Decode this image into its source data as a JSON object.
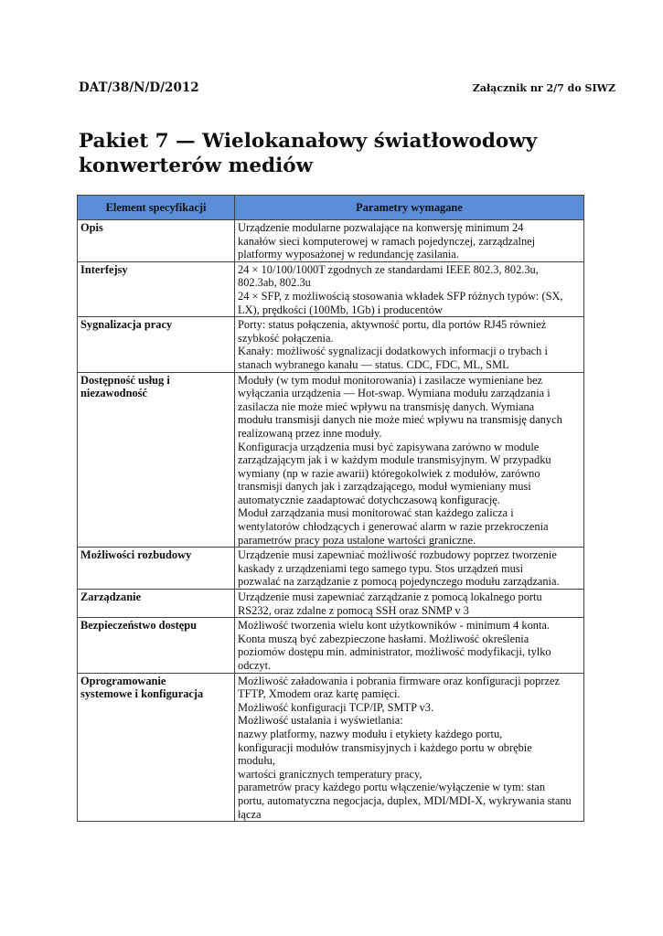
{
  "header": {
    "doc_id": "DAT/38/N/D/2012",
    "attachment": "Załącznik nr 2/7 do SIWZ"
  },
  "title_lines": [
    "Pakiet 7 — Wielokanałowy światłowodowy",
    "konwerterów mediów"
  ],
  "table": {
    "header_color": "#5a8ed8",
    "columns": [
      "Element specyfikacji",
      "Parametry wymagane"
    ],
    "rows": [
      {
        "key": [
          "Opis"
        ],
        "value": [
          "Urządzenie modularne pozwalające na konwersję minimum 24",
          "kanałów sieci komputerowej w ramach pojedynczej, zarządzalnej",
          "platformy wyposażonej w redundancję zasilania."
        ]
      },
      {
        "key": [
          "Interfejsy"
        ],
        "value": [
          "24 × 10/100/1000T zgodnych ze standardami IEEE 802.3, 802.3u,",
          "802.3ab, 802.3u",
          "24 × SFP, z możliwością stosowania wkładek SFP różnych typów: (SX,",
          "LX), prędkości (100Mb, 1Gb) i producentów"
        ]
      },
      {
        "key": [
          "Sygnalizacja pracy"
        ],
        "value": [
          "Porty: status połączenia, aktywność portu, dla portów RJ45 również",
          "szybkość połączenia.",
          "Kanały: możliwość sygnalizacji dodatkowych informacji o trybach i",
          "stanach wybranego kanału — status. CDC, FDC, ML, SML"
        ]
      },
      {
        "key": [
          "Dostępność usług i",
          "niezawodność"
        ],
        "value": [
          "Moduły (w tym moduł monitorowania) i zasilacze wymieniane bez",
          "wyłączania urządzenia — Hot-swap. Wymiana modułu zarządzania i",
          "zasilacza nie może mieć wpływu na transmisję danych. Wymiana",
          "modułu transmisji danych nie może mieć wpływu na transmisję danych",
          "realizowaną przez inne moduły.",
          "Konfiguracja urządzenia musi być zapisywana zarówno w module",
          "zarządzającym jak i w każdym module transmisyjnym. W przypadku",
          "wymiany (np w razie awarii) któregokolwiek z modułów, zarówno",
          "transmisji danych jak i zarządzającego, moduł wymieniany musi",
          "automatycznie zaadaptować dotychczasową konfigurację.",
          "Moduł zarządzania musi monitorować stan każdego zalicza i",
          "wentylatorów chłodzących i generować alarm w razie przekroczenia",
          "parametrów pracy poza ustalone wartości graniczne."
        ]
      },
      {
        "key": [
          "Możliwości rozbudowy"
        ],
        "value": [
          "Urządzenie musi zapewniać możliwość rozbudowy poprzez tworzenie",
          "kaskady z urządzeniami tego samego typu. Stos urządzeń musi",
          "pozwalać na zarządzanie z pomocą pojedynczego modułu zarządzania."
        ]
      },
      {
        "key": [
          "Zarządzanie"
        ],
        "value": [
          "Urządzenie musi zapewniać zarządzanie z pomocą lokalnego portu",
          "RS232, oraz zdalne z pomocą SSH oraz SNMP v 3"
        ]
      },
      {
        "key": [
          "Bezpieczeństwo dostępu"
        ],
        "value": [
          "Możliwość tworzenia wielu kont użytkowników - minimum 4 konta.",
          "Konta muszą być zabezpieczone hasłami. Możliwość określenia",
          "poziomów dostępu min. administrator, możliwość modyfikacji, tylko",
          "odczyt."
        ]
      },
      {
        "key": [
          "Oprogramowanie",
          "systemowe i konfiguracja"
        ],
        "value": [
          "Możliwość załadowania i pobrania firmware oraz konfiguracji poprzez",
          "TFTP, Xmodem oraz kartę pamięci.",
          "Możliwość konfiguracji TCP/IP, SMTP v3.",
          "Możliwość ustalania i wyświetlania:",
          "nazwy platformy, nazwy modułu i etykiety każdego portu,",
          "konfiguracji modułów transmisyjnych i każdego portu w obrębie",
          "modułu,",
          "wartości granicznych temperatury pracy,",
          "parametrów pracy każdego portu włączenie/wyłączenie w tym: stan",
          "portu, automatyczna negocjacja, duplex, MDI/MDI-X, wykrywania stanu",
          "łącza"
        ]
      }
    ]
  }
}
